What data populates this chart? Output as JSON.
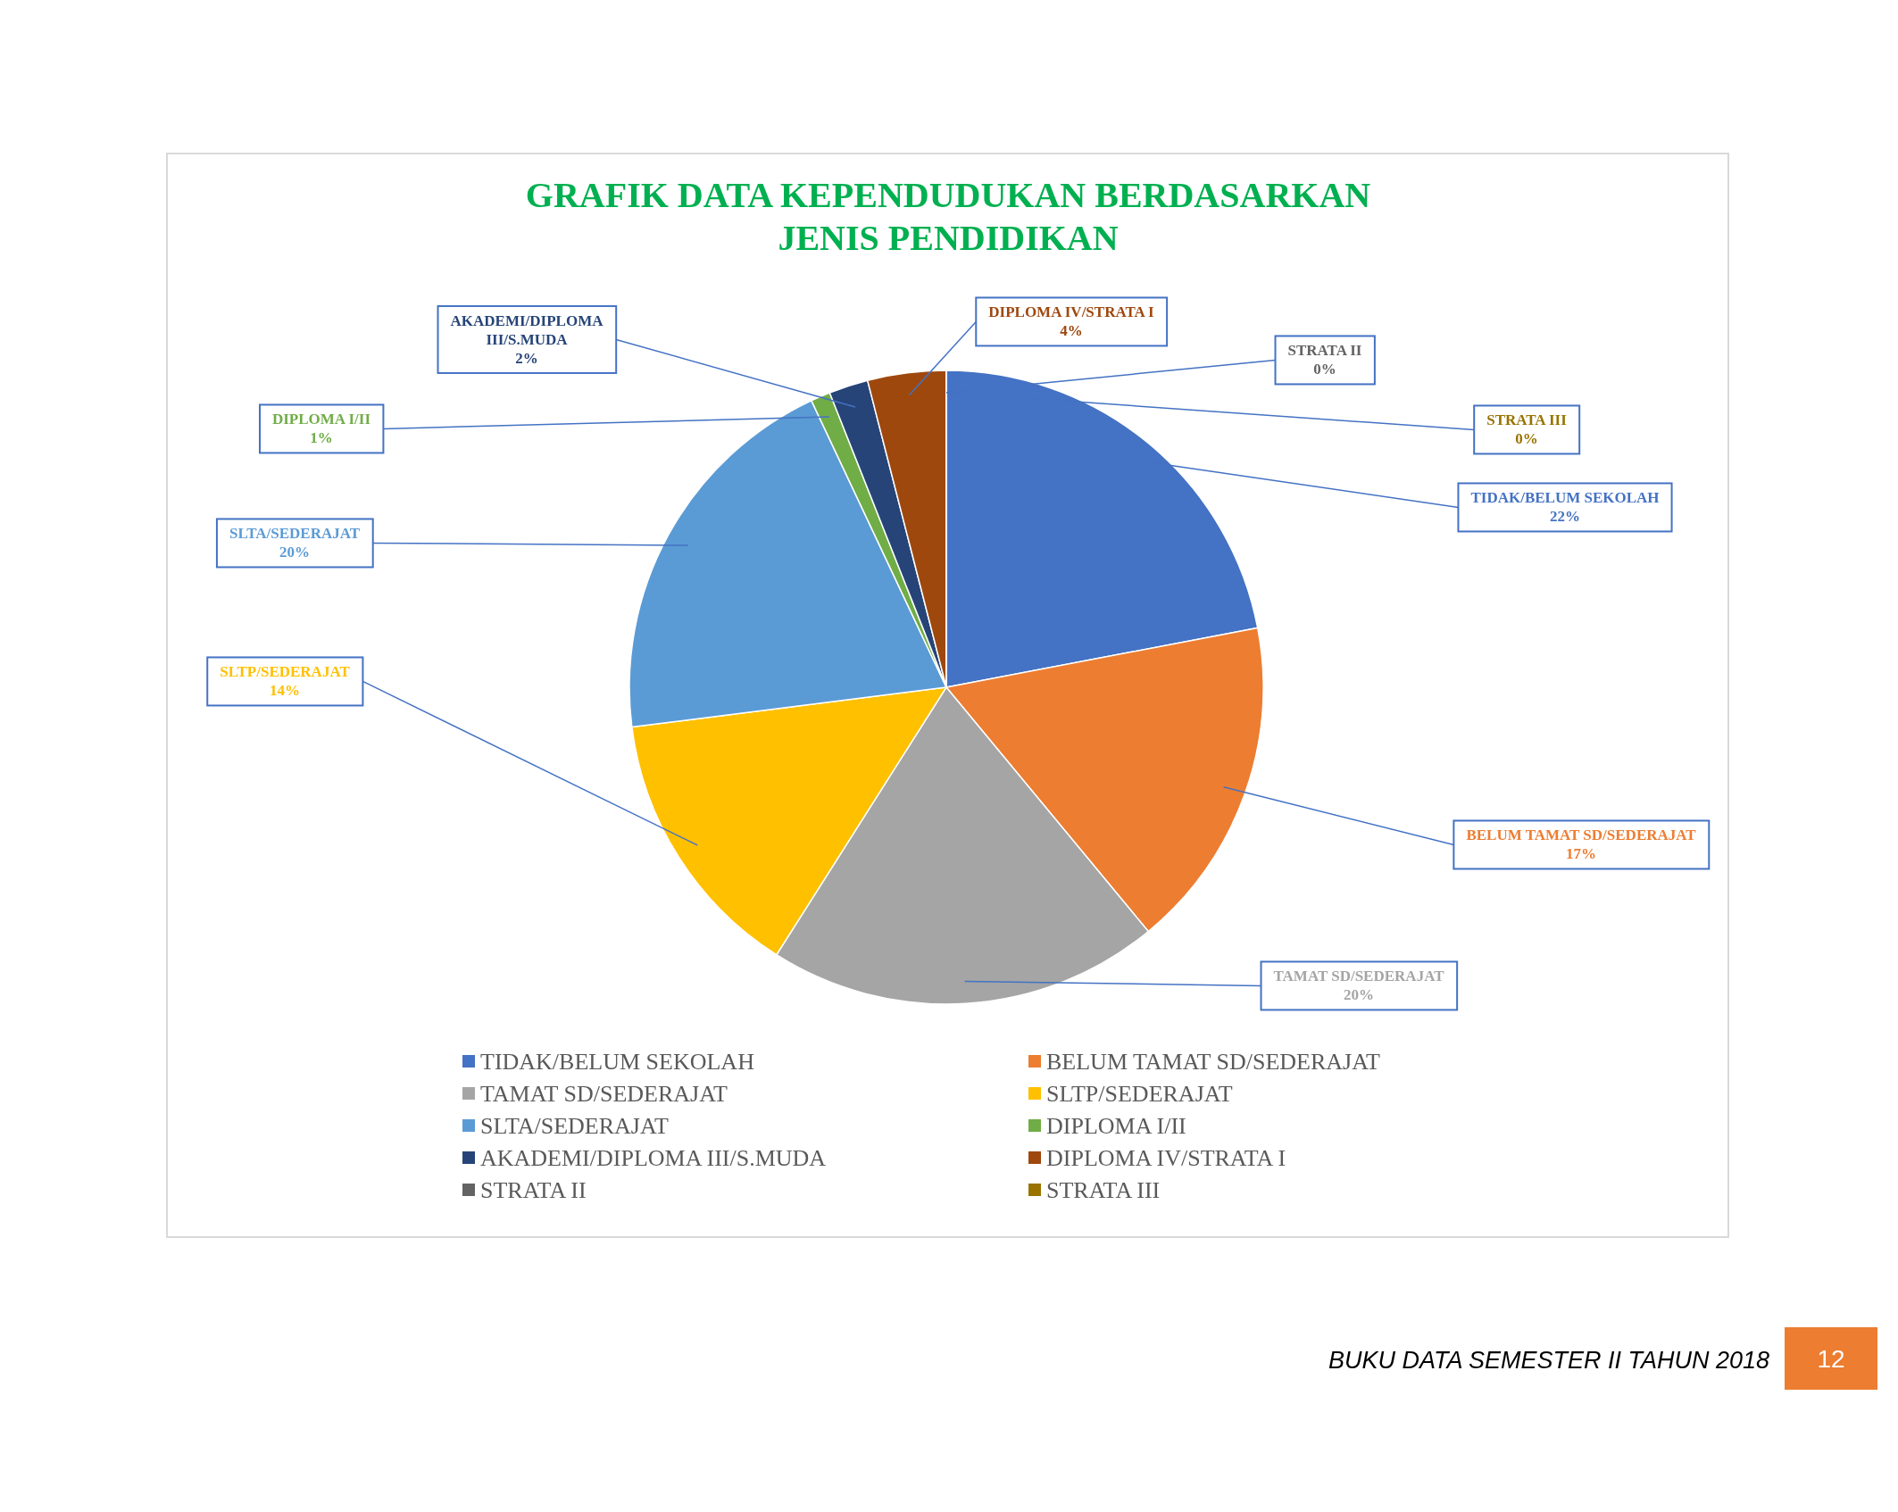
{
  "chart_data": {
    "type": "pie",
    "title": "GRAFIK DATA KEPENDUDUKAN BERDASARKAN JENIS PENDIDIKAN",
    "categories": [
      "TIDAK/BELUM SEKOLAH",
      "BELUM TAMAT SD/SEDERAJAT",
      "TAMAT SD/SEDERAJAT",
      "SLTP/SEDERAJAT",
      "SLTA/SEDERAJAT",
      "DIPLOMA I/II",
      "AKADEMI/DIPLOMA III/S.MUDA",
      "DIPLOMA IV/STRATA I",
      "STRATA II",
      "STRATA III"
    ],
    "values": [
      22,
      17,
      20,
      14,
      20,
      1,
      2,
      4,
      0,
      0
    ],
    "value_labels": [
      "22%",
      "17%",
      "20%",
      "14%",
      "20%",
      "1%",
      "2%",
      "4%",
      "0%",
      "0%"
    ],
    "colors": [
      "#4472c4",
      "#ed7d31",
      "#a5a5a5",
      "#ffc000",
      "#5b9bd5",
      "#70ad47",
      "#264478",
      "#9e480e",
      "#636363",
      "#997300"
    ],
    "legend": "bottom",
    "annotations": [
      "BUKU DATA SEMESTER II TAHUN 2018",
      "12"
    ]
  }
}
